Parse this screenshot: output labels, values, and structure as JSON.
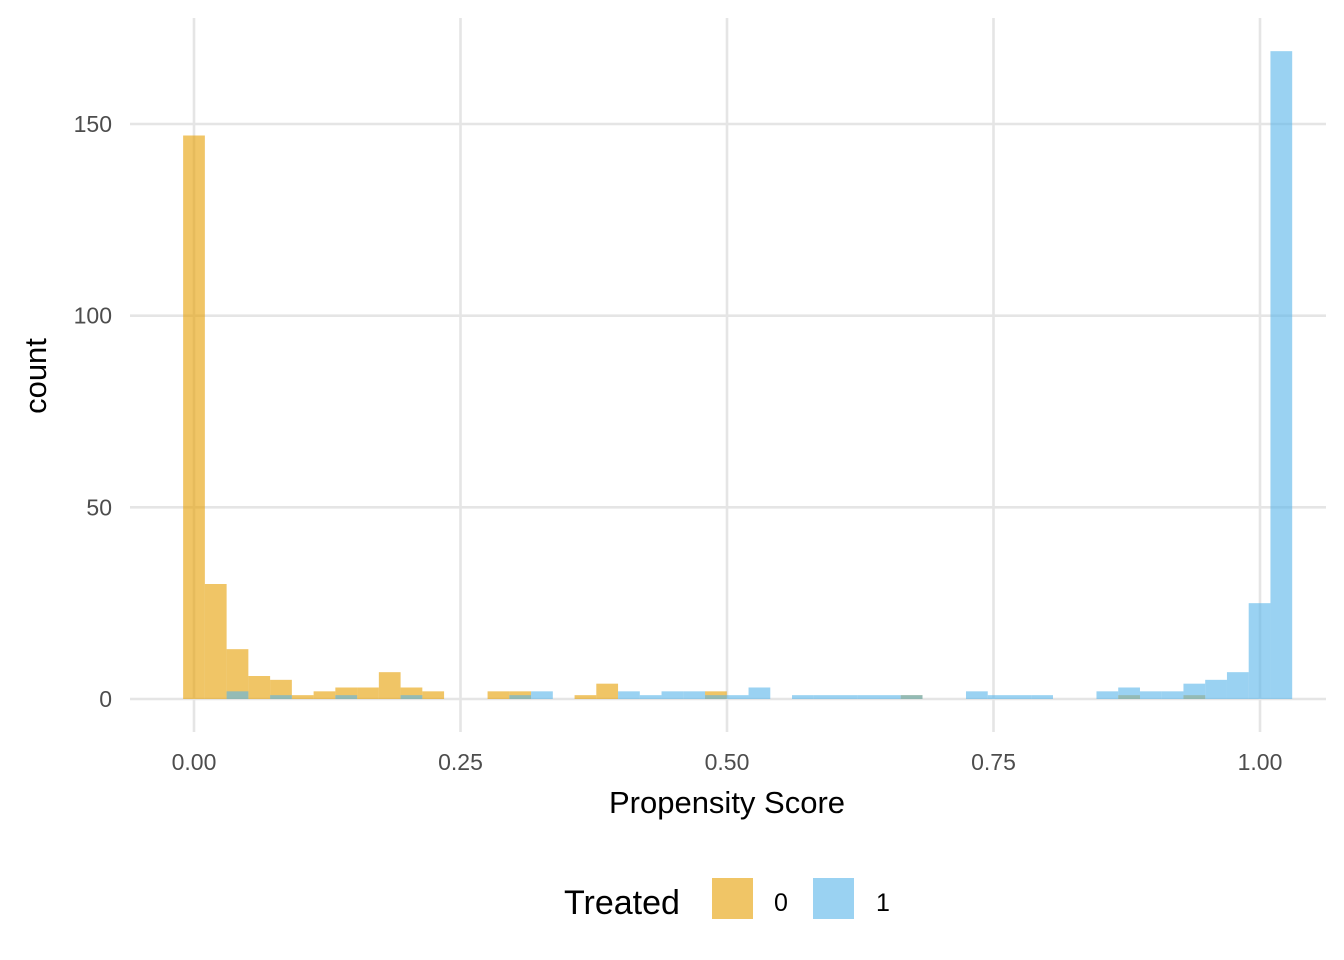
{
  "chart_data": {
    "type": "bar",
    "subtype": "overlapping-histogram",
    "xlabel": "Propensity Score",
    "ylabel": "count",
    "xlim": [
      -0.065,
      1.065
    ],
    "ylim": [
      -8,
      178
    ],
    "grid": true,
    "x_ticks": [
      0.0,
      0.25,
      0.5,
      0.75,
      1.0
    ],
    "x_tick_labels": [
      "0.00",
      "0.25",
      "0.50",
      "0.75",
      "1.00"
    ],
    "y_ticks": [
      0,
      50,
      100,
      150
    ],
    "y_tick_labels": [
      "0",
      "50",
      "100",
      "150"
    ],
    "bin_width": 0.0204,
    "bin_start": -0.0102,
    "bar_opacity": 0.6,
    "legend": {
      "title": "Treated",
      "position": "bottom",
      "entries": [
        {
          "label": "0",
          "color": "#E69F00"
        },
        {
          "label": "1",
          "color": "#56B4E9"
        }
      ]
    },
    "series": [
      {
        "name": "0",
        "color": "#E69F00",
        "values": [
          147,
          30,
          13,
          6,
          5,
          1,
          2,
          3,
          3,
          7,
          3,
          2,
          0,
          0,
          2,
          2,
          0,
          0,
          1,
          4,
          0,
          0,
          0,
          0,
          2,
          0,
          0,
          0,
          0,
          0,
          0,
          0,
          0,
          1,
          0,
          0,
          0,
          0,
          0,
          0,
          0,
          0,
          0,
          1,
          0,
          0,
          1,
          0,
          0,
          0,
          0,
          0,
          0
        ]
      },
      {
        "name": "1",
        "color": "#56B4E9",
        "values": [
          0,
          0,
          2,
          0,
          1,
          0,
          0,
          1,
          0,
          0,
          1,
          0,
          0,
          0,
          0,
          1,
          2,
          0,
          0,
          0,
          2,
          1,
          2,
          2,
          1,
          1,
          3,
          0,
          1,
          1,
          1,
          1,
          1,
          1,
          0,
          0,
          2,
          1,
          1,
          1,
          0,
          0,
          2,
          3,
          2,
          2,
          4,
          5,
          7,
          25,
          169,
          0,
          0
        ]
      }
    ]
  }
}
